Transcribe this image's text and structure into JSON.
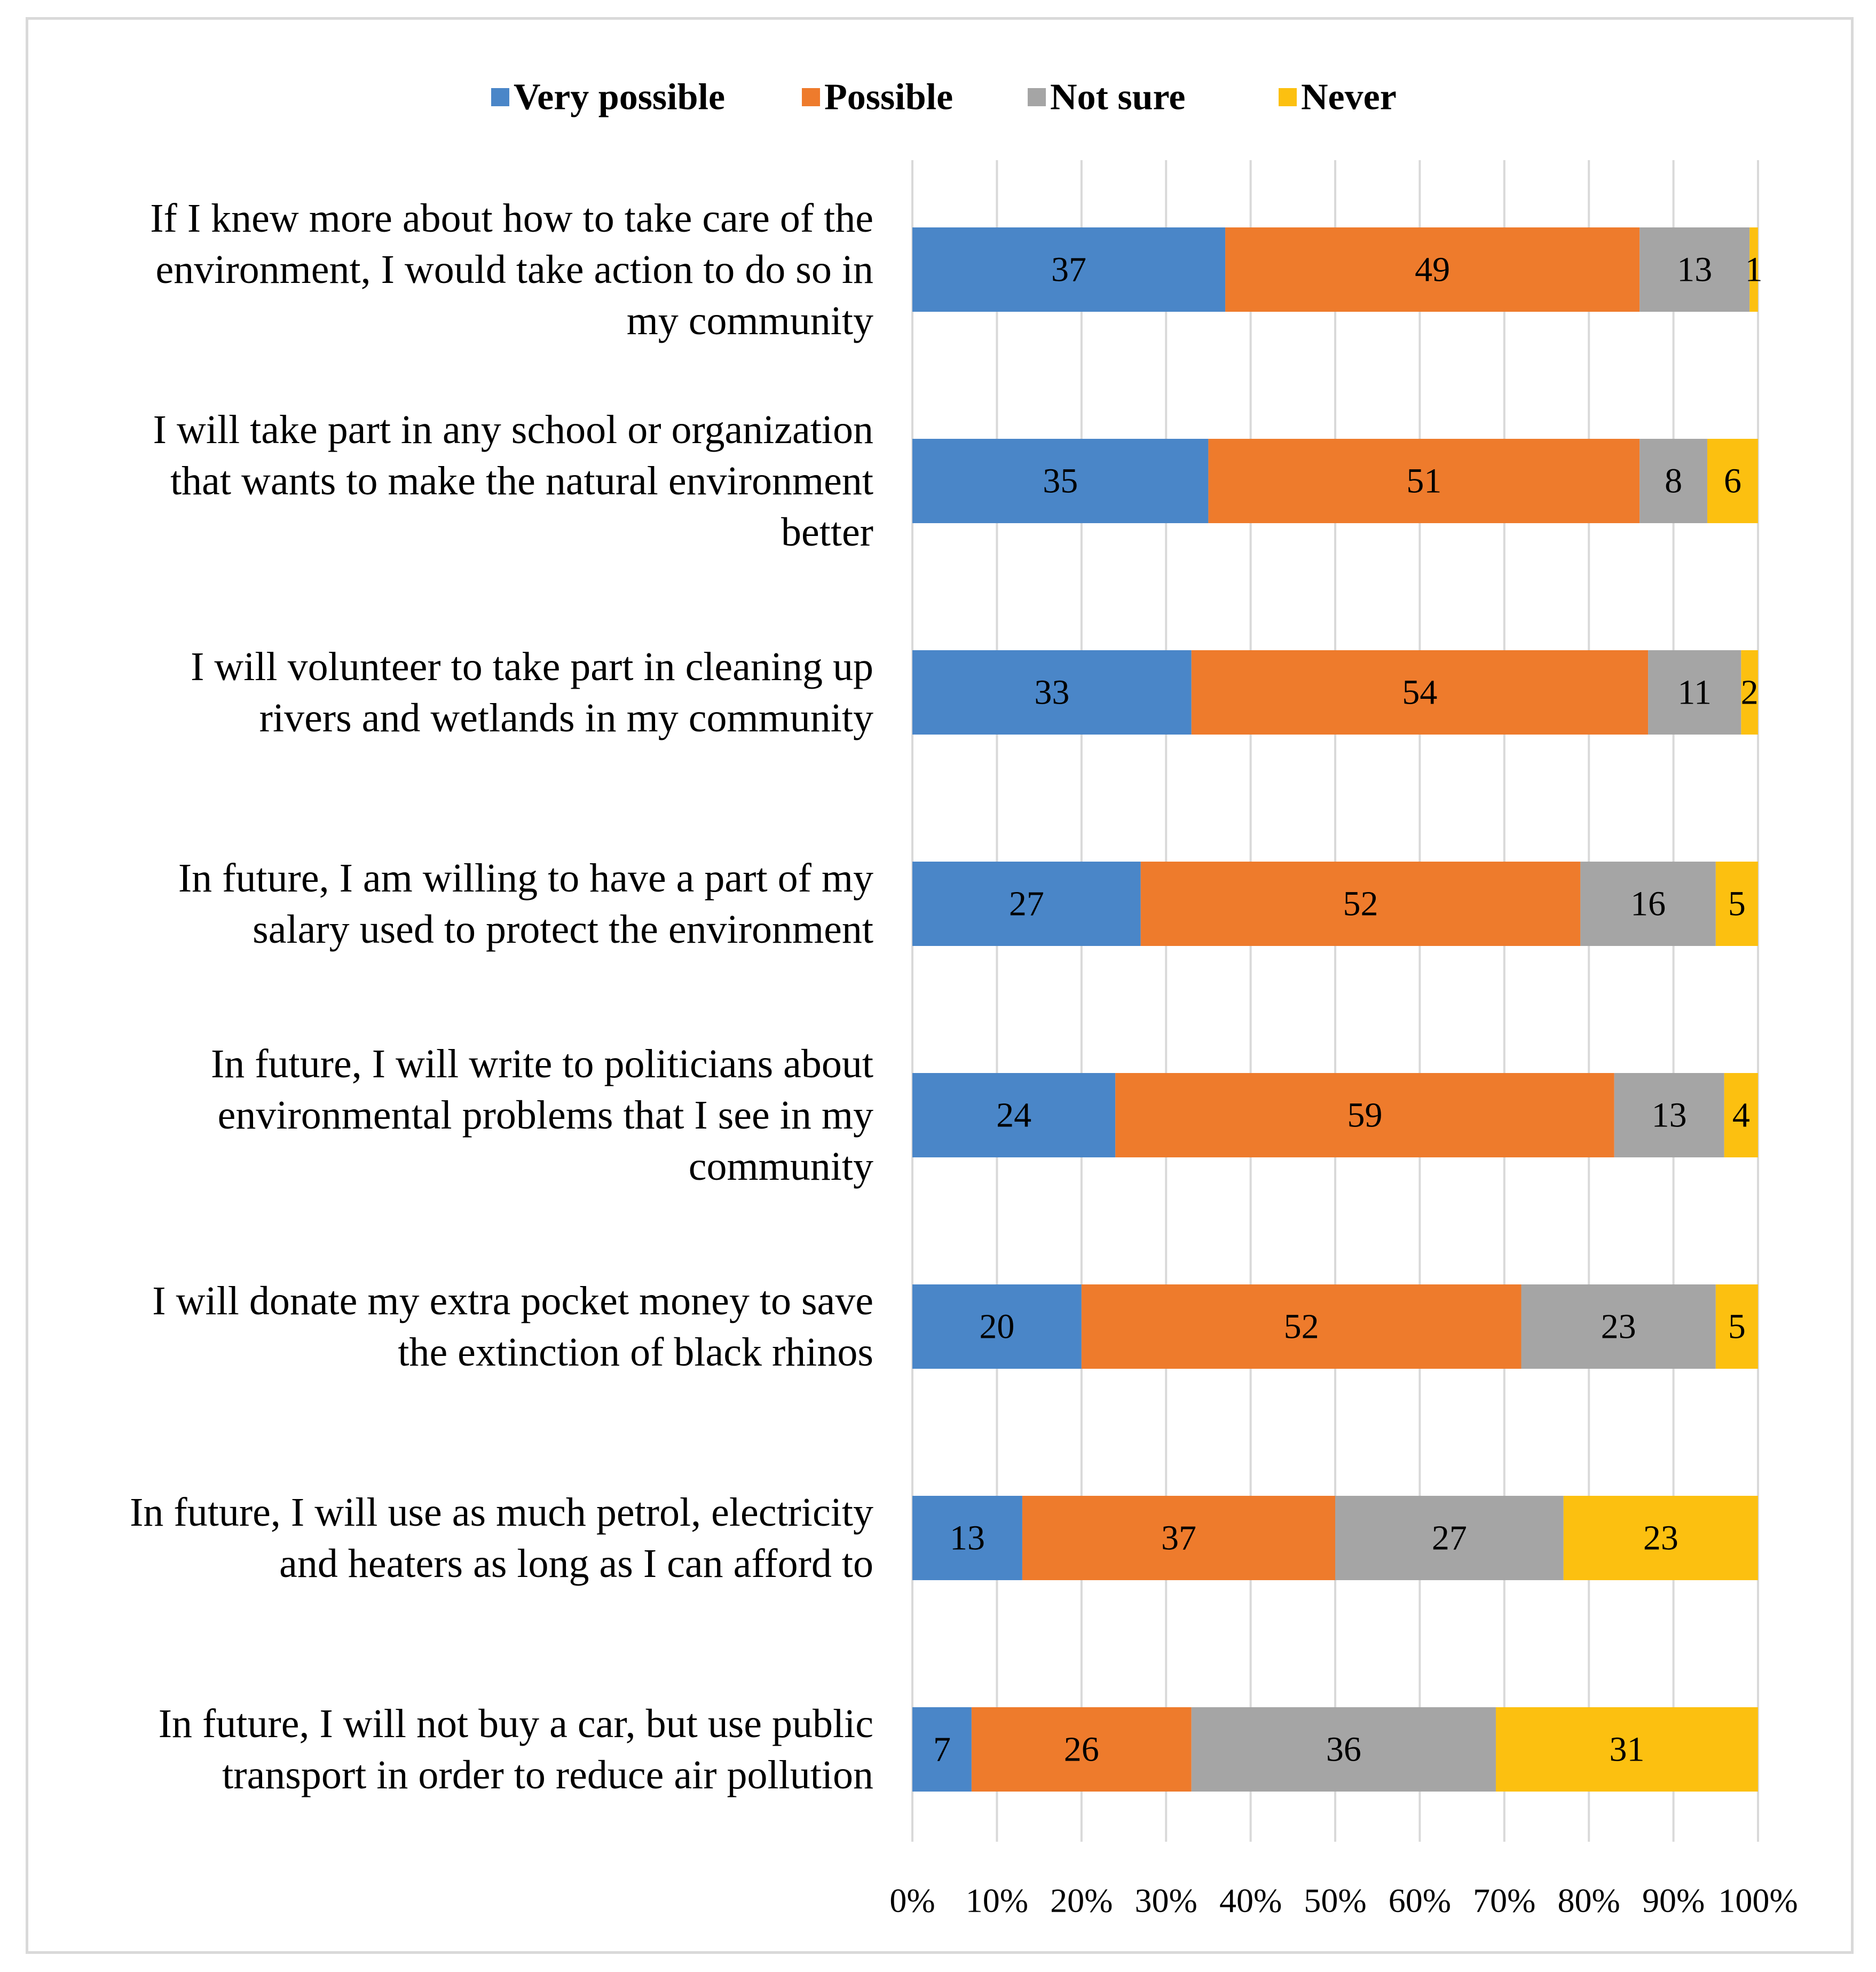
{
  "chart_data": {
    "type": "bar",
    "orientation": "horizontal",
    "stacked": true,
    "percent_stacked": true,
    "title": "",
    "xlabel": "",
    "ylabel": "",
    "xlim": [
      0,
      100
    ],
    "grid": true,
    "legend_position": "top-center",
    "categories": [
      "If I knew more about how to take care of the environment, I would take action to do so in my community",
      "I will take part in any school or organization that wants to make the natural environment better",
      "I will volunteer to take part in cleaning up rivers and wetlands in my community",
      "In future, I am willing to have a part of my salary used to protect the environment",
      "In future, I will write to politicians about environmental problems that I see in my community",
      "I will donate my extra pocket money to save the extinction of black rhinos",
      "In future, I will use as much petrol, electricity and heaters as long as I can afford to",
      "In future, I will not buy a car, but use public transport in order to reduce air pollution"
    ],
    "category_lines": [
      [
        "If I knew more about how to take care of the",
        "environment, I would take action to do so in",
        "my community"
      ],
      [
        "I will take part in any school or organization",
        "that wants to make the natural environment",
        "better"
      ],
      [
        "I will volunteer to take part in cleaning up",
        "rivers and wetlands in my community"
      ],
      [
        "In future, I am willing to have a part of my",
        "salary used to protect the environment"
      ],
      [
        "In future, I will write to politicians about",
        "environmental problems that I see in my",
        "community"
      ],
      [
        "I will donate my extra pocket money to save",
        "the extinction of black rhinos"
      ],
      [
        "In future, I will use as much petrol, electricity",
        "and heaters as long as I can afford to"
      ],
      [
        "In future, I will not buy a car, but use public",
        "transport in order to reduce air pollution"
      ]
    ],
    "series": [
      {
        "name": "Very possible",
        "color": "#4a86c8",
        "values": [
          37,
          35,
          33,
          27,
          24,
          20,
          13,
          7
        ]
      },
      {
        "name": "Possible",
        "color": "#ee7b2c",
        "values": [
          49,
          51,
          54,
          52,
          59,
          52,
          37,
          26
        ]
      },
      {
        "name": "Not sure",
        "color": "#a5a5a5",
        "values": [
          13,
          8,
          11,
          16,
          13,
          23,
          27,
          36
        ]
      },
      {
        "name": "Never",
        "color": "#fcc010",
        "values": [
          1,
          6,
          2,
          5,
          4,
          5,
          23,
          31
        ]
      }
    ],
    "x_ticks": [
      "0%",
      "10%",
      "20%",
      "30%",
      "40%",
      "50%",
      "60%",
      "70%",
      "80%",
      "90%",
      "100%"
    ]
  }
}
